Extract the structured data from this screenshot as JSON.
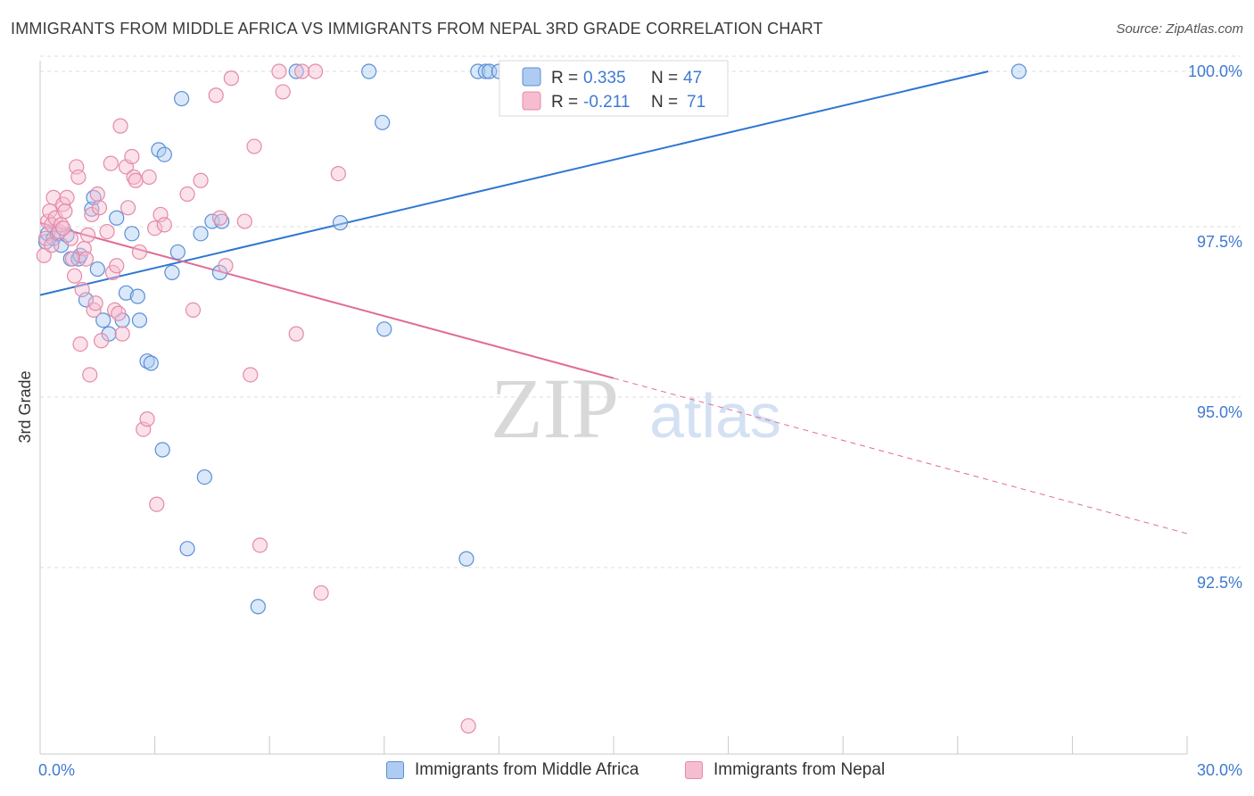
{
  "title": "IMMIGRANTS FROM MIDDLE AFRICA VS IMMIGRANTS FROM NEPAL 3RD GRADE CORRELATION CHART",
  "source": "Source: ZipAtlas.com",
  "watermark": {
    "zip": "ZIP",
    "atlas": "atlas"
  },
  "colors": {
    "blue": "#5b8fd6",
    "blue_fill": "#aecbf2",
    "blue_line": "#2f76d1",
    "pink": "#e48aa8",
    "pink_fill": "#f6bdd0",
    "pink_line": "#e06b97",
    "tick_text": "#3f7ad1",
    "grid": "#dcdcdc"
  },
  "legend": {
    "rows": [
      {
        "r_label": "R =",
        "r_value": "0.335",
        "n_label": "N =",
        "n_value": "47",
        "series": "blue"
      },
      {
        "r_label": "R =",
        "r_value": "-0.211",
        "n_label": "N =",
        "n_value": "71",
        "series": "pink"
      }
    ]
  },
  "chart_data": {
    "type": "scatter",
    "xlabel": "",
    "ylabel": "3rd Grade",
    "xlim": [
      0,
      30
    ],
    "ylim": [
      90.0,
      100.2
    ],
    "x_tick_labels": [
      "0.0%",
      "30.0%"
    ],
    "y_ticks": [
      92.5,
      95.0,
      97.5,
      100.0
    ],
    "y_tick_labels": [
      "92.5%",
      "95.0%",
      "97.5%",
      "100.0%"
    ],
    "grid": true,
    "series": [
      {
        "name": "Immigrants from Middle Africa",
        "color": "blue",
        "r": 0.335,
        "n": 47,
        "trend": {
          "x0": 0.0,
          "y0": 96.72,
          "x1": 24.8,
          "y1": 100.0,
          "x_dashed_end": 24.8
        },
        "points": [
          [
            0.15,
            97.5
          ],
          [
            0.2,
            97.62
          ],
          [
            0.35,
            97.55
          ],
          [
            0.45,
            97.62
          ],
          [
            0.55,
            97.45
          ],
          [
            0.7,
            97.6
          ],
          [
            0.8,
            97.25
          ],
          [
            1.0,
            97.25
          ],
          [
            1.05,
            97.3
          ],
          [
            1.2,
            96.65
          ],
          [
            1.35,
            97.98
          ],
          [
            1.4,
            98.15
          ],
          [
            1.5,
            97.1
          ],
          [
            1.65,
            96.35
          ],
          [
            1.8,
            96.15
          ],
          [
            2.0,
            97.85
          ],
          [
            2.15,
            96.35
          ],
          [
            2.25,
            96.75
          ],
          [
            2.4,
            97.62
          ],
          [
            2.55,
            96.7
          ],
          [
            2.6,
            96.35
          ],
          [
            2.8,
            95.75
          ],
          [
            2.9,
            95.72
          ],
          [
            3.1,
            98.85
          ],
          [
            3.2,
            94.45
          ],
          [
            3.25,
            98.78
          ],
          [
            3.45,
            97.05
          ],
          [
            3.6,
            97.35
          ],
          [
            3.7,
            99.6
          ],
          [
            3.85,
            93.0
          ],
          [
            4.2,
            97.62
          ],
          [
            4.3,
            94.05
          ],
          [
            4.5,
            97.8
          ],
          [
            4.7,
            97.05
          ],
          [
            4.75,
            97.8
          ],
          [
            5.7,
            92.15
          ],
          [
            6.7,
            100.0
          ],
          [
            7.85,
            97.78
          ],
          [
            8.6,
            100.0
          ],
          [
            8.95,
            99.25
          ],
          [
            9.0,
            96.22
          ],
          [
            11.15,
            92.85
          ],
          [
            11.45,
            100.0
          ],
          [
            11.65,
            100.0
          ],
          [
            11.75,
            100.0
          ],
          [
            12.0,
            100.0
          ],
          [
            25.6,
            100.0
          ]
        ]
      },
      {
        "name": "Immigrants from Nepal",
        "color": "pink",
        "r": -0.211,
        "n": 71,
        "trend": {
          "x0": 0.0,
          "y0": 97.78,
          "x1": 15.0,
          "y1": 95.5,
          "x_dashed_end": 30.0
        },
        "points": [
          [
            0.1,
            97.3
          ],
          [
            0.15,
            97.55
          ],
          [
            0.2,
            97.8
          ],
          [
            0.25,
            97.95
          ],
          [
            0.3,
            97.75
          ],
          [
            0.35,
            98.15
          ],
          [
            0.4,
            97.85
          ],
          [
            0.5,
            97.65
          ],
          [
            0.55,
            97.75
          ],
          [
            0.6,
            98.05
          ],
          [
            0.65,
            97.95
          ],
          [
            0.7,
            98.15
          ],
          [
            0.8,
            97.55
          ],
          [
            0.85,
            97.25
          ],
          [
            0.9,
            97.0
          ],
          [
            0.95,
            98.6
          ],
          [
            1.0,
            98.45
          ],
          [
            1.05,
            96.0
          ],
          [
            1.1,
            96.8
          ],
          [
            1.15,
            97.4
          ],
          [
            1.2,
            97.25
          ],
          [
            1.25,
            97.6
          ],
          [
            1.3,
            95.55
          ],
          [
            1.35,
            97.9
          ],
          [
            1.4,
            96.5
          ],
          [
            1.45,
            96.6
          ],
          [
            1.5,
            98.2
          ],
          [
            1.55,
            98.0
          ],
          [
            1.6,
            96.05
          ],
          [
            1.75,
            97.65
          ],
          [
            1.85,
            98.65
          ],
          [
            1.9,
            97.05
          ],
          [
            1.95,
            96.5
          ],
          [
            2.0,
            97.15
          ],
          [
            2.05,
            96.45
          ],
          [
            2.1,
            99.2
          ],
          [
            2.15,
            96.15
          ],
          [
            2.25,
            98.6
          ],
          [
            2.3,
            98.0
          ],
          [
            2.4,
            98.75
          ],
          [
            2.45,
            98.45
          ],
          [
            2.5,
            98.4
          ],
          [
            2.6,
            97.35
          ],
          [
            2.7,
            94.75
          ],
          [
            2.85,
            98.45
          ],
          [
            2.8,
            94.9
          ],
          [
            3.0,
            97.7
          ],
          [
            3.05,
            93.65
          ],
          [
            3.15,
            97.9
          ],
          [
            3.25,
            97.75
          ],
          [
            3.85,
            98.2
          ],
          [
            4.0,
            96.5
          ],
          [
            4.2,
            98.4
          ],
          [
            4.6,
            99.65
          ],
          [
            4.7,
            97.85
          ],
          [
            4.85,
            97.15
          ],
          [
            5.0,
            99.9
          ],
          [
            5.35,
            97.8
          ],
          [
            5.5,
            95.55
          ],
          [
            5.6,
            98.9
          ],
          [
            5.75,
            93.05
          ],
          [
            6.25,
            100.0
          ],
          [
            6.35,
            99.7
          ],
          [
            6.7,
            96.15
          ],
          [
            6.85,
            100.0
          ],
          [
            7.2,
            100.0
          ],
          [
            7.35,
            92.35
          ],
          [
            7.8,
            98.5
          ],
          [
            11.2,
            90.4
          ],
          [
            0.3,
            97.45
          ],
          [
            0.6,
            97.7
          ]
        ]
      }
    ]
  }
}
